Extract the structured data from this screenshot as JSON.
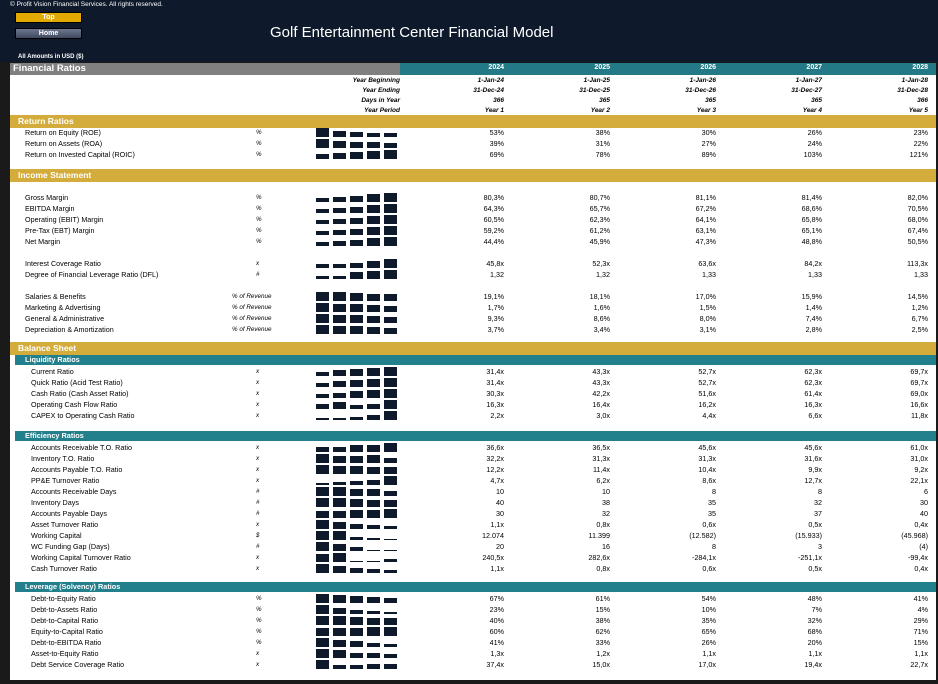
{
  "header": {
    "copyright": "© Profit Vision Financial Services. All rights reserved.",
    "top_label": "Top",
    "home_label": "Home",
    "title": "Golf Entertainment Center Financial Model",
    "amounts_note": "All Amounts in  USD ($)"
  },
  "table": {
    "title": "Financial Ratios",
    "years": [
      "2024",
      "2025",
      "2026",
      "2027",
      "2028"
    ],
    "year_beginning_label": "Year Beginning",
    "year_beginning": [
      "1-Jan-24",
      "1-Jan-25",
      "1-Jan-26",
      "1-Jan-27",
      "1-Jan-28"
    ],
    "year_ending_label": "Year Ending",
    "year_ending": [
      "31-Dec-24",
      "31-Dec-25",
      "31-Dec-26",
      "31-Dec-27",
      "31-Dec-28"
    ],
    "days_label": "Days in Year",
    "days": [
      "366",
      "365",
      "365",
      "365",
      "366"
    ],
    "period_label": "Year Period",
    "period": [
      "Year 1",
      "Year 2",
      "Year 3",
      "Year 4",
      "Year 5"
    ]
  },
  "sections": {
    "return": "Return Ratios",
    "income": "Income Statement",
    "balance": "Balance Sheet",
    "liquidity": "Liquidity Ratios",
    "efficiency": "Efficiency Ratios",
    "leverage": "Leverage (Solvency) Ratios"
  },
  "rows": [
    {
      "label": "Return on Equity (ROE)",
      "unit": "%",
      "values": [
        "53%",
        "38%",
        "30%",
        "26%",
        "23%"
      ],
      "trend": [
        1,
        0.7,
        0.57,
        0.49,
        0.43
      ]
    },
    {
      "label": "Return on Assets (ROA)",
      "unit": "%",
      "values": [
        "39%",
        "31%",
        "27%",
        "24%",
        "22%"
      ],
      "trend": [
        1,
        0.79,
        0.69,
        0.62,
        0.56
      ]
    },
    {
      "label": "Return on Invested Capital (ROIC)",
      "unit": "%",
      "values": [
        "69%",
        "78%",
        "89%",
        "103%",
        "121%"
      ],
      "trend": [
        0.57,
        0.64,
        0.74,
        0.85,
        1
      ]
    },
    {
      "label": "Gross Margin",
      "unit": "%",
      "values": [
        "80,3%",
        "80,7%",
        "81,1%",
        "81,4%",
        "82,0%"
      ],
      "trend": [
        0.4,
        0.55,
        0.7,
        0.85,
        1
      ]
    },
    {
      "label": "EBITDA Margin",
      "unit": "%",
      "values": [
        "64,3%",
        "65,7%",
        "67,2%",
        "68,6%",
        "70,5%"
      ],
      "trend": [
        0.4,
        0.55,
        0.7,
        0.85,
        1
      ]
    },
    {
      "label": "Operating (EBIT) Margin",
      "unit": "%",
      "values": [
        "60,5%",
        "62,3%",
        "64,1%",
        "65,8%",
        "68,0%"
      ],
      "trend": [
        0.4,
        0.55,
        0.7,
        0.85,
        1
      ]
    },
    {
      "label": "Pre-Tax (EBT) Margin",
      "unit": "%",
      "values": [
        "59,2%",
        "61,2%",
        "63,1%",
        "65,1%",
        "67,4%"
      ],
      "trend": [
        0.4,
        0.55,
        0.7,
        0.85,
        1
      ]
    },
    {
      "label": "Net Margin",
      "unit": "%",
      "values": [
        "44,4%",
        "45,9%",
        "47,3%",
        "48,8%",
        "50,5%"
      ],
      "trend": [
        0.4,
        0.55,
        0.7,
        0.85,
        1
      ]
    },
    {
      "label": "Interest Coverage Ratio",
      "unit": "x",
      "values": [
        "45,8x",
        "52,3x",
        "63,6x",
        "84,2x",
        "113,3x"
      ],
      "trend": [
        0.4,
        0.46,
        0.56,
        0.74,
        1
      ]
    },
    {
      "label": "Degree of Financial Leverage Ratio (DFL)",
      "unit": "#",
      "values": [
        "1,32",
        "1,32",
        "1,33",
        "1,33",
        "1,33"
      ],
      "trend": [
        0.3,
        0.35,
        0.8,
        0.9,
        1
      ]
    },
    {
      "label": "Salaries & Benefits",
      "unit": "% of Revenue",
      "values": [
        "19,1%",
        "18,1%",
        "17,0%",
        "15,9%",
        "14,5%"
      ],
      "trend": [
        1,
        0.95,
        0.89,
        0.83,
        0.76
      ]
    },
    {
      "label": "Marketing & Advertising",
      "unit": "% of Revenue",
      "values": [
        "1,7%",
        "1,6%",
        "1,5%",
        "1,4%",
        "1,2%"
      ],
      "trend": [
        1,
        0.94,
        0.88,
        0.82,
        0.7
      ]
    },
    {
      "label": "General & Administrative",
      "unit": "% of Revenue",
      "values": [
        "9,3%",
        "8,6%",
        "8,0%",
        "7,4%",
        "6,7%"
      ],
      "trend": [
        1,
        0.92,
        0.86,
        0.8,
        0.72
      ]
    },
    {
      "label": "Depreciation & Amortization",
      "unit": "% of Revenue",
      "values": [
        "3,7%",
        "3,4%",
        "3,1%",
        "2,8%",
        "2,5%"
      ],
      "trend": [
        1,
        0.92,
        0.84,
        0.76,
        0.68
      ]
    },
    {
      "label": "Current Ratio",
      "unit": "x",
      "values": [
        "31,4x",
        "43,3x",
        "52,7x",
        "62,3x",
        "69,7x"
      ],
      "trend": [
        0.45,
        0.62,
        0.76,
        0.89,
        1
      ]
    },
    {
      "label": "Quick Ratio (Acid Test Ratio)",
      "unit": "x",
      "values": [
        "31,4x",
        "43,3x",
        "52,7x",
        "62,3x",
        "69,7x"
      ],
      "trend": [
        0.45,
        0.62,
        0.76,
        0.89,
        1
      ]
    },
    {
      "label": "Cash Ratio (Cash Asset Ratio)",
      "unit": "x",
      "values": [
        "30,3x",
        "42,2x",
        "51,6x",
        "61,4x",
        "69,0x"
      ],
      "trend": [
        0.44,
        0.61,
        0.75,
        0.89,
        1
      ]
    },
    {
      "label": "Operating Cash Flow Ratio",
      "unit": "x",
      "values": [
        "16,3x",
        "16,4x",
        "16,2x",
        "16,3x",
        "16,6x"
      ],
      "trend": [
        0.6,
        0.8,
        0.4,
        0.6,
        1
      ]
    },
    {
      "label": "CAPEX to Operating Cash Ratio",
      "unit": "x",
      "values": [
        "2,2x",
        "3,0x",
        "4,4x",
        "6,6x",
        "11,8x"
      ],
      "trend": [
        0.19,
        0.25,
        0.37,
        0.56,
        1
      ]
    },
    {
      "label": "Accounts Receivable T.O. Ratio",
      "unit": "x",
      "values": [
        "36,6x",
        "36,5x",
        "45,6x",
        "45,6x",
        "61,0x"
      ],
      "trend": [
        0.6,
        0.6,
        0.75,
        0.75,
        1
      ]
    },
    {
      "label": "Inventory T.O. Ratio",
      "unit": "x",
      "values": [
        "32,2x",
        "31,3x",
        "31,3x",
        "31,6x",
        "31,0x"
      ],
      "trend": [
        1,
        0.8,
        0.8,
        0.9,
        0.6
      ]
    },
    {
      "label": "Accounts Payable T.O. Ratio",
      "unit": "x",
      "values": [
        "12,2x",
        "11,4x",
        "10,4x",
        "9,9x",
        "9,2x"
      ],
      "trend": [
        1,
        0.93,
        0.85,
        0.81,
        0.75
      ]
    },
    {
      "label": "PP&E Turnover Ratio",
      "unit": "x",
      "values": [
        "4,7x",
        "6,2x",
        "8,6x",
        "12,7x",
        "22,1x"
      ],
      "trend": [
        0.21,
        0.28,
        0.39,
        0.57,
        1
      ]
    },
    {
      "label": "Accounts Receivable Days",
      "unit": "#",
      "values": [
        "10",
        "10",
        "8",
        "8",
        "6"
      ],
      "trend": [
        1,
        1,
        0.8,
        0.8,
        0.6
      ]
    },
    {
      "label": "Inventory Days",
      "unit": "#",
      "values": [
        "40",
        "38",
        "35",
        "32",
        "30"
      ],
      "trend": [
        1,
        0.95,
        0.88,
        0.8,
        0.75
      ]
    },
    {
      "label": "Accounts Payable Days",
      "unit": "#",
      "values": [
        "30",
        "32",
        "35",
        "37",
        "40"
      ],
      "trend": [
        0.75,
        0.8,
        0.88,
        0.93,
        1
      ]
    },
    {
      "label": "Asset Turnover Ratio",
      "unit": "x",
      "values": [
        "1,1x",
        "0,8x",
        "0,6x",
        "0,5x",
        "0,4x"
      ],
      "trend": [
        1,
        0.73,
        0.55,
        0.45,
        0.36
      ]
    },
    {
      "label": "Working Capital",
      "unit": "$",
      "values": [
        "12.074",
        "11.399",
        "(12.582)",
        "(15.933)",
        "(45.968)"
      ],
      "trend": [
        1,
        0.95,
        0.3,
        0.25,
        0.1
      ]
    },
    {
      "label": "WC Funding Gap (Days)",
      "unit": "#",
      "values": [
        "20",
        "16",
        "8",
        "3",
        "(4)"
      ],
      "trend": [
        1,
        0.8,
        0.4,
        0.15,
        0.05
      ]
    },
    {
      "label": "Working Capital Turnover Ratio",
      "unit": "x",
      "values": [
        "240,5x",
        "282,6x",
        "-284,1x",
        "-251,1x",
        "-99,4x"
      ],
      "trend": [
        0.85,
        1,
        0.1,
        0.1,
        0.3
      ]
    },
    {
      "label": "Cash Turnover Ratio",
      "unit": "x",
      "values": [
        "1,1x",
        "0,8x",
        "0,6x",
        "0,5x",
        "0,4x"
      ],
      "trend": [
        1,
        0.73,
        0.55,
        0.45,
        0.36
      ]
    },
    {
      "label": "Debt-to-Equity Ratio",
      "unit": "%",
      "values": [
        "67%",
        "61%",
        "54%",
        "48%",
        "41%"
      ],
      "trend": [
        1,
        0.91,
        0.81,
        0.72,
        0.61
      ]
    },
    {
      "label": "Debt-to-Assets Ratio",
      "unit": "%",
      "values": [
        "23%",
        "15%",
        "10%",
        "7%",
        "4%"
      ],
      "trend": [
        1,
        0.65,
        0.43,
        0.3,
        0.17
      ]
    },
    {
      "label": "Debt-to-Capital Ratio",
      "unit": "%",
      "values": [
        "40%",
        "38%",
        "35%",
        "32%",
        "29%"
      ],
      "trend": [
        1,
        0.95,
        0.88,
        0.8,
        0.73
      ]
    },
    {
      "label": "Equity-to-Capital Ratio",
      "unit": "%",
      "values": [
        "60%",
        "62%",
        "65%",
        "68%",
        "71%"
      ],
      "trend": [
        0.85,
        0.87,
        0.92,
        0.96,
        1
      ]
    },
    {
      "label": "Debt-to-EBITDA Ratio",
      "unit": "%",
      "values": [
        "41%",
        "33%",
        "26%",
        "20%",
        "15%"
      ],
      "trend": [
        1,
        0.8,
        0.63,
        0.49,
        0.37
      ]
    },
    {
      "label": "Asset-to-Equity Ratio",
      "unit": "x",
      "values": [
        "1,3x",
        "1,2x",
        "1,1x",
        "1,1x",
        "1,1x"
      ],
      "trend": [
        1,
        0.9,
        0.6,
        0.5,
        0.4
      ]
    },
    {
      "label": "Debt Service Coverage Ratio",
      "unit": "x",
      "values": [
        "37,4x",
        "15,0x",
        "17,0x",
        "19,4x",
        "22,7x"
      ],
      "trend": [
        1,
        0.4,
        0.45,
        0.52,
        0.61
      ]
    }
  ]
}
